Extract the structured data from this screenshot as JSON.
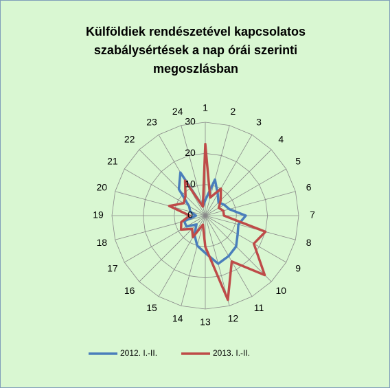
{
  "chart_data": {
    "type": "radar",
    "title": "Külföldiek rendészetével kapcsolatos szabálysértések a nap órái szerinti megoszlásban",
    "categories": [
      "1",
      "2",
      "3",
      "4",
      "5",
      "6",
      "7",
      "8",
      "9",
      "10",
      "11",
      "12",
      "13",
      "14",
      "15",
      "16",
      "17",
      "18",
      "19",
      "20",
      "21",
      "22",
      "23",
      "24"
    ],
    "series": [
      {
        "name": "2012. I.-II.",
        "color": "#4a7ebb",
        "values": [
          5,
          12,
          8,
          6,
          7,
          8,
          13,
          11,
          12,
          14,
          15,
          16,
          12,
          10,
          7,
          4,
          7,
          7,
          3,
          5,
          6,
          12,
          16,
          3
        ]
      },
      {
        "name": "2013. I.-II.",
        "color": "#be4b48",
        "values": [
          23,
          6,
          10,
          7,
          5,
          6,
          6,
          20,
          18,
          27,
          17,
          28,
          10,
          3,
          8,
          6,
          9,
          8,
          5,
          12,
          8,
          9,
          13,
          3
        ]
      }
    ],
    "rlim": [
      0,
      30
    ],
    "rticks": [
      0,
      10,
      20,
      30
    ],
    "grid": true,
    "legend": "bottom"
  }
}
